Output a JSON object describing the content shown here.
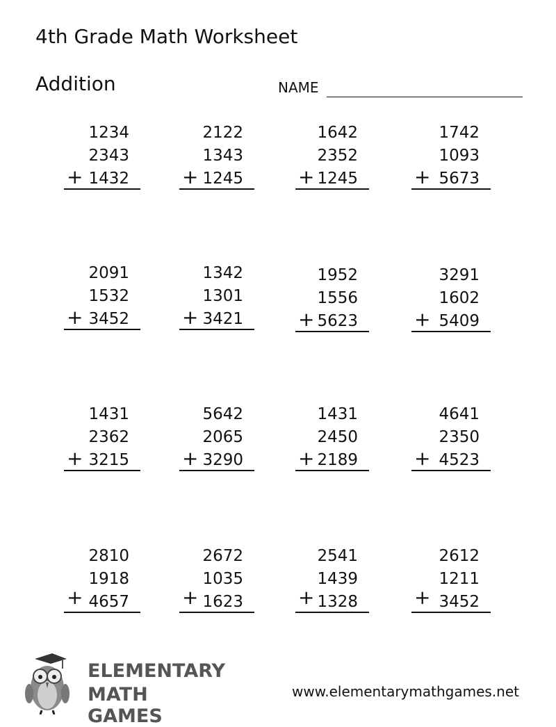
{
  "header": {
    "title": "4th Grade Math Worksheet",
    "subtitle": "Addition",
    "name_label": "NAME"
  },
  "problems": [
    {
      "a": "1234",
      "b": "2343",
      "c": "1432"
    },
    {
      "a": "2122",
      "b": "1343",
      "c": "1245"
    },
    {
      "a": "1642",
      "b": "2352",
      "c": "1245"
    },
    {
      "a": "1742",
      "b": "1093",
      "c": "5673"
    },
    {
      "a": "2091",
      "b": "1532",
      "c": "3452"
    },
    {
      "a": "1342",
      "b": "1301",
      "c": "3421"
    },
    {
      "a": "1952",
      "b": "1556",
      "c": "5623"
    },
    {
      "a": "3291",
      "b": "1602",
      "c": "5409"
    },
    {
      "a": "1431",
      "b": "2362",
      "c": "3215"
    },
    {
      "a": "5642",
      "b": "2065",
      "c": "3290"
    },
    {
      "a": "1431",
      "b": "2450",
      "c": "2189"
    },
    {
      "a": "4641",
      "b": "2350",
      "c": "4523"
    },
    {
      "a": "2810",
      "b": "1918",
      "c": "4657"
    },
    {
      "a": "2672",
      "b": "1035",
      "c": "1623"
    },
    {
      "a": "2541",
      "b": "1439",
      "c": "1328"
    },
    {
      "a": "2612",
      "b": "1211",
      "c": "3452"
    }
  ],
  "operator": "+",
  "footer": {
    "logo_line1": "ELEMENTARY",
    "logo_line2": "MATH GAMES",
    "url": "www.elementarymathgames.net"
  }
}
